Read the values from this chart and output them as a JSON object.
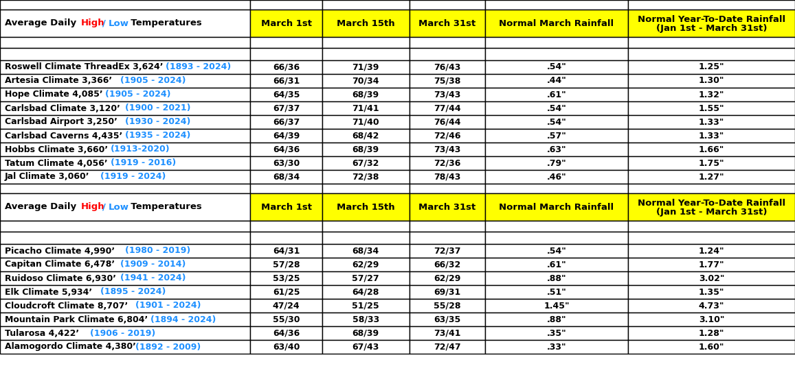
{
  "header": [
    "March 1st",
    "March 15th",
    "March 31st",
    "Normal March Rainfall",
    "Normal Year-To-Date Rainfall\n(Jan 1st - March 31st)"
  ],
  "section1": [
    [
      "Roswell Climate ThreadEx 3,624’ ",
      "(1893 - 2024)",
      "66/36",
      "71/39",
      "76/43",
      ".54\"",
      "1.25\""
    ],
    [
      "Artesia Climate 3,366’ ",
      "(1905 - 2024)",
      "66/31",
      "70/34",
      "75/38",
      ".44\"",
      "1.30\""
    ],
    [
      "Hope Climate 4,085’ ",
      "(1905 - 2024)",
      "64/35",
      "68/39",
      "73/43",
      ".61\"",
      "1.32\""
    ],
    [
      "Carlsbad Climate 3,120’ ",
      "(1900 - 2021)",
      "67/37",
      "71/41",
      "77/44",
      ".54\"",
      "1.55\""
    ],
    [
      "Carlsbad Airport 3,250’ ",
      "(1930 - 2024)",
      "66/37",
      "71/40",
      "76/44",
      ".54\"",
      "1.33\""
    ],
    [
      "Carlsbad Caverns 4,435’ ",
      "(1935 - 2024)",
      "64/39",
      "68/42",
      "72/46",
      ".57\"",
      "1.33\""
    ],
    [
      "Hobbs Climate 3,660’ ",
      "(1913-2020)",
      "64/36",
      "68/39",
      "73/43",
      ".63\"",
      "1.66\""
    ],
    [
      "Tatum Climate 4,056’ ",
      "(1919 - 2016)",
      "63/30",
      "67/32",
      "72/36",
      ".79\"",
      "1.75\""
    ],
    [
      "Jal Climate 3,060’ ",
      "(1919 - 2024)",
      "68/34",
      "72/38",
      "78/43",
      ".46\"",
      "1.27\""
    ]
  ],
  "section2": [
    [
      "Picacho Climate 4,990’  ",
      "(1980 - 2019)",
      "64/31",
      "68/34",
      "72/37",
      ".54\"",
      "1.24\""
    ],
    [
      "Capitan Climate 6,478’ ",
      "(1909 - 2014)",
      "57/28",
      "62/29",
      "66/32",
      ".61\"",
      "1.77\""
    ],
    [
      "Ruidoso Climate 6,930’ ",
      "(1941 - 2024)",
      "53/25",
      "57/27",
      "62/29",
      ".88\"",
      "3.02\""
    ],
    [
      "Elk Climate 5,934’ ",
      "(1895 - 2024)",
      "61/25",
      "64/28",
      "69/31",
      ".51\"",
      "1.35\""
    ],
    [
      "Cloudcroft Climate 8,707’ ",
      "(1901 - 2024)",
      "47/24",
      "51/25",
      "55/28",
      "1.45\"",
      "4.73\""
    ],
    [
      "Mountain Park Climate 6,804’ ",
      "(1894 - 2024)",
      "55/30",
      "58/33",
      "63/35",
      ".88\"",
      "3.10\""
    ],
    [
      "Tularosa 4,422’  ",
      "(1906 - 2019)",
      "64/36",
      "68/39",
      "73/41",
      ".35\"",
      "1.28\""
    ],
    [
      "Alamogordo Climate 4,380’ ",
      "(1892 - 2009)",
      "63/40",
      "67/43",
      "72/47",
      ".33\"",
      "1.60\""
    ]
  ],
  "header_bg": "#FFFF00",
  "year_fg": "#1E90FF",
  "high_color": "#FF0000",
  "low_color": "#1E90FF",
  "bg_color": "#FFFFFF",
  "fontsize": 9.0,
  "fontsize_header": 9.5
}
